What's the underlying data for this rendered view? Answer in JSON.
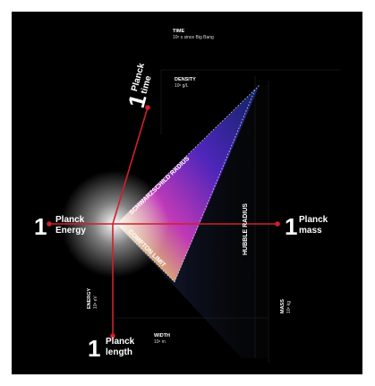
{
  "axes": {
    "time": {
      "title": "TIME",
      "unit": "10ˣ s since Big Bang"
    },
    "density": {
      "title": "DENSITY",
      "unit": "10ˣ g/L"
    },
    "energy": {
      "title": "ENERGY",
      "unit": "10ˣ eV"
    },
    "width": {
      "title": "WIDTH",
      "unit": "10ˣ m"
    },
    "mass": {
      "title": "MASS",
      "unit": "10ˣ kg"
    }
  },
  "planck": {
    "time": {
      "number": "1",
      "lines": [
        "Planck",
        "time"
      ]
    },
    "energy": {
      "number": "1",
      "lines": [
        "Planck",
        "Energy"
      ]
    },
    "mass": {
      "number": "1",
      "lines": [
        "Planck",
        "mass"
      ]
    },
    "length": {
      "number": "1",
      "lines": [
        "Planck",
        "length"
      ]
    }
  },
  "limits": {
    "schwarzschild": "SCHWARZSCHILD RADIUS",
    "compton": "COMPTON LIMIT",
    "hubble": "HUBBLE RADIUS"
  }
}
